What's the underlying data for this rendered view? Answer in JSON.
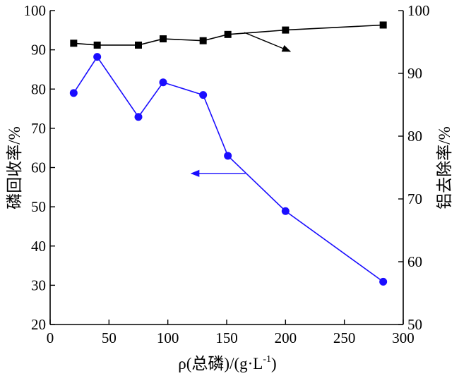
{
  "chart_data": {
    "type": "line",
    "title": "",
    "xlabel": "ρ(总磷)/(g·L",
    "xlabel_sup": "-1",
    "xlabel_close": ")",
    "ylabel_left": "磷回收率/%",
    "ylabel_right": "铝去除率/%",
    "xlim": [
      0,
      300
    ],
    "ylim_left": [
      20,
      100
    ],
    "ylim_right": [
      50,
      100
    ],
    "x_ticks": [
      0,
      50,
      100,
      150,
      200,
      250,
      300
    ],
    "y_left_ticks": [
      20,
      30,
      40,
      50,
      60,
      70,
      80,
      90,
      100
    ],
    "y_right_ticks": [
      50,
      60,
      70,
      80,
      90,
      100
    ],
    "grid": false,
    "series": [
      {
        "axis": "right",
        "marker": "square",
        "color": "#000000",
        "x": [
          20,
          40,
          75,
          96,
          130,
          151,
          200,
          283
        ],
        "y": [
          94.8,
          94.5,
          94.5,
          95.5,
          95.2,
          96.2,
          96.9,
          97.7
        ]
      },
      {
        "axis": "left",
        "marker": "circle",
        "color": "#1a0dff",
        "x": [
          20,
          40,
          75,
          96,
          130,
          151,
          200,
          283
        ],
        "y": [
          79,
          88.2,
          72.9,
          81.7,
          78.5,
          63,
          48.9,
          30.9
        ]
      }
    ],
    "arrows": [
      {
        "points_to": "right",
        "series_index": 0
      },
      {
        "points_to": "left",
        "series_index": 1
      }
    ]
  }
}
